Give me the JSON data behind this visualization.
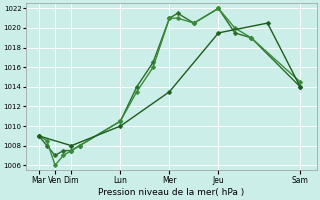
{
  "xlabel": "Pression niveau de la mer( hPa )",
  "bg_color": "#cceee8",
  "grid_color": "#ffffff",
  "x_labels": [
    "Mar",
    "Ven",
    "Dim",
    "Lun",
    "Mer",
    "Jeu",
    "Sam"
  ],
  "x_positions": [
    0,
    1,
    2,
    5,
    8,
    11,
    16
  ],
  "ylim": [
    1005.5,
    1022.5
  ],
  "yticks": [
    1006,
    1008,
    1010,
    1012,
    1014,
    1016,
    1018,
    1020,
    1022
  ],
  "line1_peaked": {
    "x": [
      0,
      0.5,
      1.0,
      1.5,
      2.0,
      2.5,
      5.0,
      6.0,
      7.0,
      8.0,
      8.5,
      9.5,
      11.0,
      12.0,
      13.0,
      16.0
    ],
    "y": [
      1009.0,
      1008.0,
      1007.0,
      1007.5,
      1007.5,
      1008.0,
      1010.5,
      1014.0,
      1016.5,
      1021.0,
      1021.5,
      1020.5,
      1022.0,
      1019.5,
      1019.0,
      1014.0
    ],
    "color": "#2a6e2a",
    "marker": "D",
    "markersize": 2.5,
    "linewidth": 1.0
  },
  "line2_peaked": {
    "x": [
      0,
      0.5,
      1.0,
      1.5,
      2.0,
      2.5,
      5.0,
      6.0,
      7.0,
      8.0,
      8.5,
      9.5,
      11.0,
      12.0,
      13.0,
      16.0
    ],
    "y": [
      1009.0,
      1008.5,
      1006.0,
      1007.0,
      1007.5,
      1008.0,
      1010.5,
      1013.5,
      1016.0,
      1021.0,
      1021.0,
      1020.5,
      1022.0,
      1020.0,
      1019.0,
      1014.5
    ],
    "color": "#3a8a3a",
    "marker": "D",
    "markersize": 2.5,
    "linewidth": 1.0
  },
  "line3_straight": {
    "x": [
      0,
      2.0,
      5.0,
      8.0,
      11.0,
      14.0,
      16.0
    ],
    "y": [
      1009.0,
      1008.0,
      1010.0,
      1013.5,
      1019.5,
      1020.5,
      1014.0
    ],
    "color": "#1e5c1e",
    "marker": "D",
    "markersize": 2.5,
    "linewidth": 1.0
  }
}
